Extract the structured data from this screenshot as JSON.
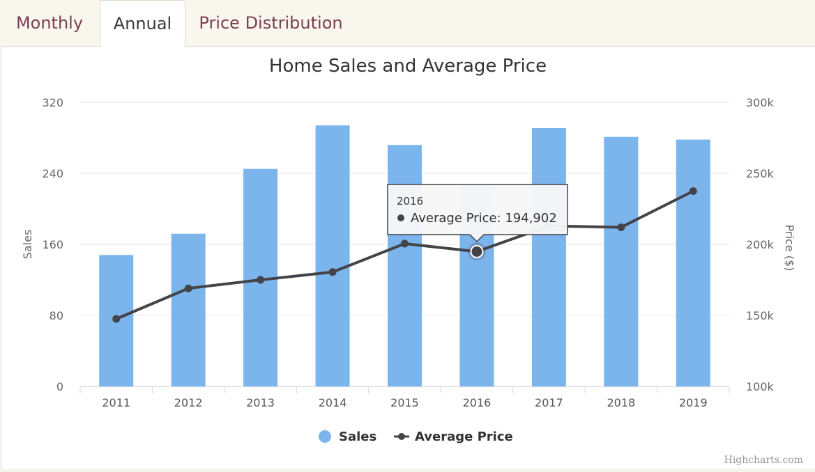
{
  "tabs": [
    {
      "label": "Monthly",
      "active": false
    },
    {
      "label": "Annual",
      "active": true
    },
    {
      "label": "Price Distribution",
      "active": false
    }
  ],
  "credit": "Highcharts.com",
  "tooltip": {
    "category": "2016",
    "label": "Average Price: 194,902"
  },
  "colors": {
    "bar": "#7cb5ec",
    "line": "#434348",
    "tab_text": "#7a3f52"
  },
  "chart_data": {
    "type": "bar",
    "title": "Home Sales and Average Price",
    "categories": [
      "2011",
      "2012",
      "2013",
      "2014",
      "2015",
      "2016",
      "2017",
      "2018",
      "2019"
    ],
    "series": [
      {
        "name": "Sales",
        "type": "bar",
        "axis": "left",
        "values": [
          148,
          172,
          245,
          294,
          272,
          227,
          291,
          281,
          278
        ]
      },
      {
        "name": "Average Price",
        "type": "line",
        "axis": "right",
        "values": [
          147500,
          169000,
          175000,
          180500,
          200500,
          194902,
          213000,
          212000,
          237500
        ]
      }
    ],
    "y_left": {
      "label": "Sales",
      "ylim": [
        0,
        320
      ],
      "ticks": [
        0,
        80,
        160,
        240,
        320
      ],
      "tick_labels": [
        "0",
        "80",
        "160",
        "240",
        "320"
      ]
    },
    "y_right": {
      "label": "Price ($)",
      "ylim": [
        100000,
        300000
      ],
      "ticks": [
        100000,
        150000,
        200000,
        250000,
        300000
      ],
      "tick_labels": [
        "100k",
        "150k",
        "200k",
        "250k",
        "300k"
      ]
    },
    "grid": true,
    "legend": "bottom-center",
    "highlighted_index": 5
  }
}
